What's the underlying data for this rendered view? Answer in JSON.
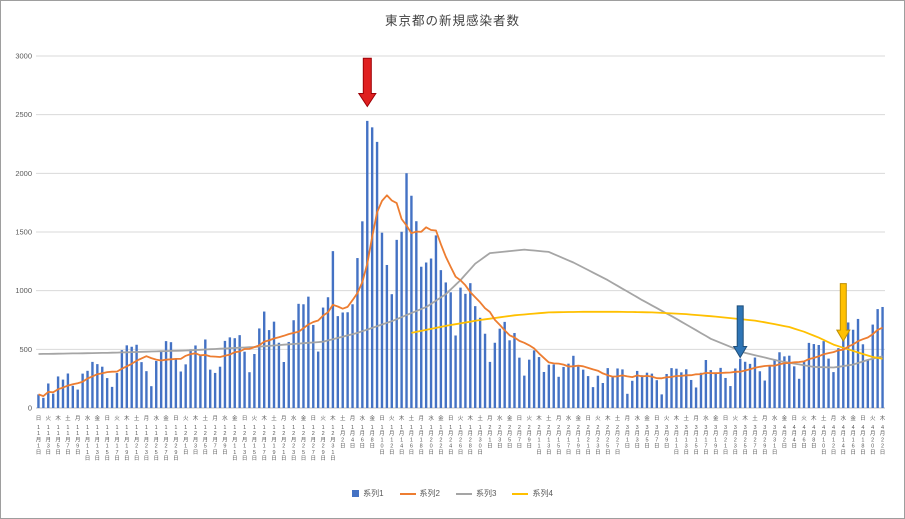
{
  "chart_meta": {
    "title": "東京都の新規感染者数"
  },
  "chart_data": {
    "type": "bar",
    "title": "東京都の新規感染者数",
    "xlabel": "",
    "ylabel": "",
    "ylim": [
      0,
      3000
    ],
    "ytick_step": 500,
    "grid": true,
    "legend_position": "bottom",
    "dow_cycle": [
      "日",
      "月",
      "火",
      "水",
      "木",
      "金",
      "土"
    ],
    "day_suffix": "日",
    "x_label_every": 2,
    "months": [
      {
        "label": "11月",
        "days": 30
      },
      {
        "label": "12月",
        "days": 31
      },
      {
        "label": "1月",
        "days": 31
      },
      {
        "label": "2月",
        "days": 28
      },
      {
        "label": "3月",
        "days": 31
      },
      {
        "label": "4月",
        "days": 22
      }
    ],
    "series": [
      {
        "name": "系列1",
        "type": "bar",
        "color": "#4472c4",
        "values": [
          116,
          87,
          209,
          122,
          269,
          242,
          294,
          189,
          157,
          293,
          317,
          393,
          374,
          352,
          255,
          180,
          298,
          493,
          534,
          522,
          539,
          391,
          314,
          186,
          401,
          481,
          570,
          561,
          418,
          311,
          372,
          500,
          533,
          449,
          584,
          327,
          299,
          352,
          572,
          602,
          595,
          621,
          480,
          305,
          460,
          678,
          822,
          664,
          736,
          556,
          392,
          563,
          748,
          888,
          884,
          949,
          708,
          481,
          856,
          944,
          1337,
          783,
          814,
          816,
          884,
          1278,
          1591,
          2447,
          2392,
          2268,
          1494,
          1219,
          970,
          1433,
          1502,
          2001,
          1809,
          1592,
          1204,
          1240,
          1274,
          1471,
          1175,
          1070,
          986,
          618,
          1026,
          973,
          1064,
          868,
          769,
          633,
          393,
          556,
          676,
          734,
          577,
          639,
          429,
          276,
          412,
          491,
          434,
          307,
          369,
          371,
          266,
          350,
          378,
          445,
          353,
          327,
          272,
          178,
          275,
          213,
          340,
          270,
          337,
          329,
          121,
          232,
          316,
          279,
          301,
          293,
          237,
          116,
          290,
          340,
          335,
          304,
          330,
          239,
          175,
          300,
          409,
          323,
          303,
          342,
          256,
          187,
          337,
          420,
          394,
          376,
          430,
          313,
          234,
          364,
          414,
          475,
          440,
          446,
          355,
          249,
          399,
          555,
          545,
          537,
          570,
          421,
          306,
          510,
          591,
          729,
          667,
          759,
          543,
          405,
          711,
          843,
          861
        ]
      },
      {
        "name": "系列2",
        "type": "line",
        "color": "#ed7d31",
        "derived": "moving_average",
        "window": 7,
        "source": 0
      },
      {
        "name": "系列3",
        "type": "line",
        "color": "#a5a5a5",
        "anchors": [
          [
            0,
            460
          ],
          [
            14,
            470
          ],
          [
            30,
            490
          ],
          [
            44,
            520
          ],
          [
            58,
            565
          ],
          [
            65,
            640
          ],
          [
            72,
            740
          ],
          [
            79,
            860
          ],
          [
            83,
            970
          ],
          [
            86,
            1090
          ],
          [
            89,
            1230
          ],
          [
            92,
            1320
          ],
          [
            99,
            1350
          ],
          [
            104,
            1330
          ],
          [
            109,
            1240
          ],
          [
            116,
            1090
          ],
          [
            123,
            920
          ],
          [
            130,
            760
          ],
          [
            137,
            590
          ],
          [
            144,
            470
          ],
          [
            151,
            400
          ],
          [
            158,
            350
          ],
          [
            162,
            345
          ],
          [
            166,
            370
          ],
          [
            169,
            410
          ],
          [
            172,
            440
          ]
        ]
      },
      {
        "name": "系列4",
        "type": "line",
        "color": "#ffc000",
        "anchors": [
          [
            76,
            640
          ],
          [
            83,
            700
          ],
          [
            90,
            750
          ],
          [
            97,
            790
          ],
          [
            104,
            815
          ],
          [
            111,
            820
          ],
          [
            118,
            820
          ],
          [
            125,
            815
          ],
          [
            132,
            800
          ],
          [
            139,
            775
          ],
          [
            146,
            745
          ],
          [
            150,
            715
          ],
          [
            153,
            690
          ],
          [
            156,
            650
          ],
          [
            159,
            600
          ],
          [
            162,
            540
          ],
          [
            165,
            500
          ],
          [
            168,
            460
          ],
          [
            170,
            435
          ],
          [
            172,
            420
          ]
        ]
      }
    ],
    "annotations": [
      {
        "name": "red-down-arrow",
        "index": 67,
        "y_from": 2980,
        "y_to": 2570,
        "color": "#e02020",
        "stroke": "#9c0006",
        "shaft_w": 8,
        "head_w": 17,
        "head_h": 13
      },
      {
        "name": "blue-down-arrow",
        "index": 143,
        "y_from": 870,
        "y_to": 430,
        "color": "#2e75b6",
        "stroke": "#1f4e79",
        "shaft_w": 6,
        "head_w": 13,
        "head_h": 11
      },
      {
        "name": "yellow-down-arrow",
        "index": 164,
        "y_from": 1060,
        "y_to": 570,
        "color": "#ffc000",
        "stroke": "#bf8f00",
        "shaft_w": 6,
        "head_w": 13,
        "head_h": 11
      }
    ]
  }
}
